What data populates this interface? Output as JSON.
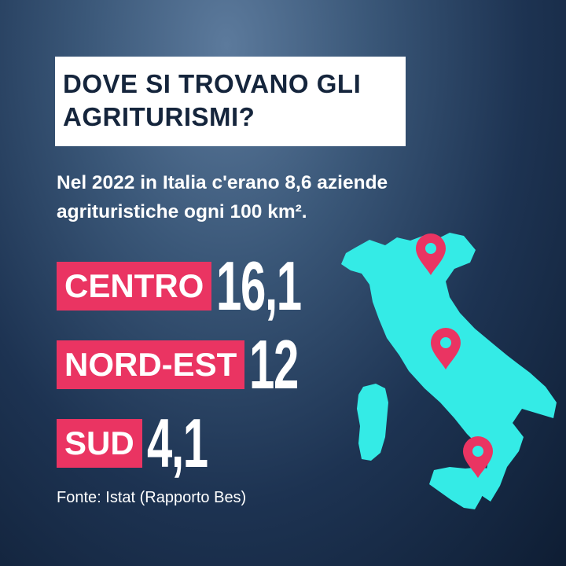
{
  "title": {
    "line1": "DOVE SI TROVANO GLI",
    "line2": "AGRITURISMI?"
  },
  "subtitle": {
    "line1": "Nel 2022 in Italia c'erano 8,6 aziende",
    "line2": "agrituristiche ogni 100 km²."
  },
  "regions": [
    {
      "label": "CENTRO",
      "value": "16,1"
    },
    {
      "label": "NORD-EST",
      "value": "12"
    },
    {
      "label": "SUD",
      "value": "4,1"
    }
  ],
  "source": "Fonte: Istat (Rapporto Bes)",
  "colors": {
    "accent": "#ea3462",
    "map": "#34ebe6",
    "pin": "#ea3462",
    "background": "#1d3352"
  },
  "icons": [
    "location-pin-icon",
    "italy-map"
  ]
}
